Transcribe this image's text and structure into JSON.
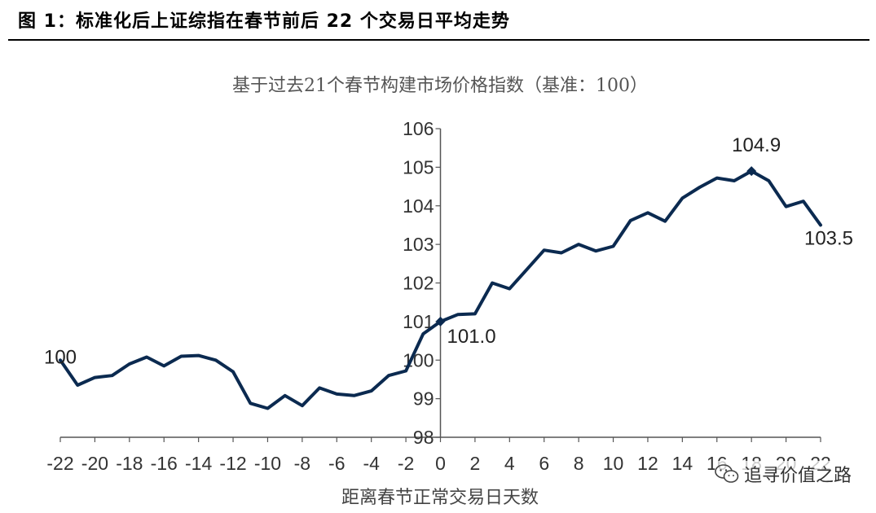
{
  "figure": {
    "title": "图 1：标准化后上证综指在春节前后 22 个交易日平均走势"
  },
  "watermark": {
    "text": "追寻价值之路",
    "icon": "wechat-icon"
  },
  "chart_data": {
    "type": "line",
    "subtitle": "基于过去21个春节构建市场价格指数（基准：100）",
    "xlabel": "距离春节正常交易日天数",
    "ylabel": "",
    "xlim": [
      -22,
      22
    ],
    "ylim": [
      98,
      106
    ],
    "x_ticks": [
      -22,
      -20,
      -18,
      -16,
      -14,
      -12,
      -10,
      -8,
      -6,
      -4,
      -2,
      0,
      2,
      4,
      6,
      8,
      10,
      12,
      14,
      16,
      18,
      20,
      22
    ],
    "y_ticks": [
      98,
      99,
      100,
      101,
      102,
      103,
      104,
      105,
      106
    ],
    "grid": false,
    "line_color": "#0b2a50",
    "series": [
      {
        "x": [
          -22,
          -21,
          -20,
          -19,
          -18,
          -17,
          -16,
          -15,
          -14,
          -13,
          -12,
          -11,
          -10,
          -9,
          -8,
          -7,
          -6,
          -5,
          -4,
          -3,
          -2,
          -1,
          0,
          1,
          2,
          3,
          4,
          5,
          6,
          7,
          8,
          9,
          10,
          11,
          12,
          13,
          14,
          15,
          16,
          17,
          18,
          19,
          20,
          21,
          22
        ],
        "y": [
          100.0,
          99.35,
          99.55,
          99.6,
          99.9,
          100.08,
          99.85,
          100.1,
          100.12,
          100.0,
          99.7,
          98.88,
          98.75,
          99.08,
          98.82,
          99.28,
          99.12,
          99.08,
          99.2,
          99.6,
          99.72,
          100.68,
          101.0,
          101.18,
          101.2,
          102.0,
          101.85,
          102.35,
          102.85,
          102.78,
          103.0,
          102.83,
          102.95,
          103.62,
          103.82,
          103.6,
          104.2,
          104.48,
          104.72,
          104.65,
          104.9,
          104.65,
          103.98,
          104.12,
          103.5
        ]
      }
    ],
    "annotations": [
      {
        "x": -22,
        "y": 100.0,
        "text": "100",
        "marker": false
      },
      {
        "x": 0,
        "y": 101.0,
        "text": "101.0",
        "marker": true
      },
      {
        "x": 18,
        "y": 104.9,
        "text": "104.9",
        "marker": true
      },
      {
        "x": 22,
        "y": 103.5,
        "text": "103.5",
        "marker": false
      }
    ]
  }
}
